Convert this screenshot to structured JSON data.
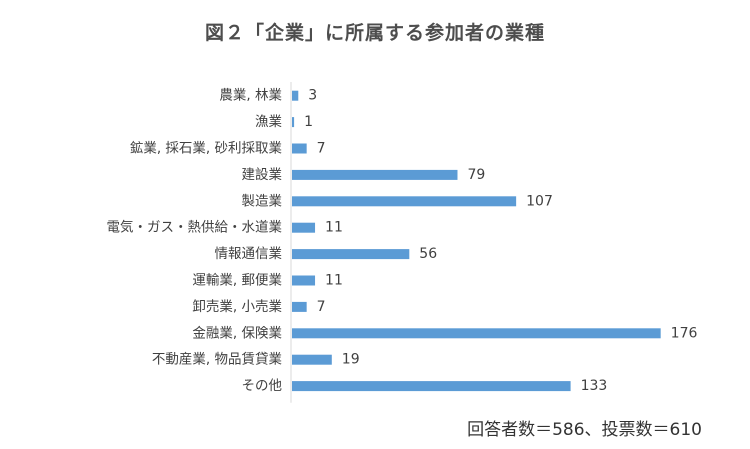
{
  "chart_data": {
    "type": "bar",
    "orientation": "horizontal",
    "title": "図２「企業」に所属する参加者の業種",
    "categories": [
      "農業, 林業",
      "漁業",
      "鉱業, 採石業, 砂利採取業",
      "建設業",
      "製造業",
      "電気・ガス・熱供給・水道業",
      "情報通信業",
      "運輸業, 郵便業",
      "卸売業, 小売業",
      "金融業, 保険業",
      "不動産業, 物品賃貸業",
      "その他"
    ],
    "values": [
      3,
      1,
      7,
      79,
      107,
      11,
      56,
      11,
      7,
      176,
      19,
      133
    ],
    "xlim": [
      0,
      190
    ],
    "grid": false,
    "bar_color": "#5b9bd5",
    "data_labels": true
  },
  "footnote": "回答者数＝586、投票数＝610"
}
